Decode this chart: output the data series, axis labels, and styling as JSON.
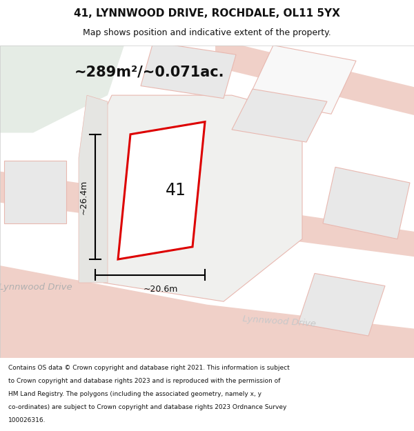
{
  "title": "41, LYNNWOOD DRIVE, ROCHDALE, OL11 5YX",
  "subtitle": "Map shows position and indicative extent of the property.",
  "area_text": "~289m²/~0.071ac.",
  "number_label": "41",
  "dim_width": "~20.6m",
  "dim_height": "~26.4m",
  "street_label1": "Lynnwood Drive",
  "street_label2": "Lynnwood Drive",
  "footer_lines": [
    "Contains OS data © Crown copyright and database right 2021. This information is subject",
    "to Crown copyright and database rights 2023 and is reproduced with the permission of",
    "HM Land Registry. The polygons (including the associated geometry, namely x, y",
    "co-ordinates) are subject to Crown copyright and database rights 2023 Ordnance Survey",
    "100026316."
  ],
  "road_color": "#f0d0c8",
  "plot_outline_color": "#dd0000",
  "building_fill_color": "#e8e8e8",
  "green_area_color": "#e5ece5",
  "plot_outline_lc": "#e8b8b0"
}
